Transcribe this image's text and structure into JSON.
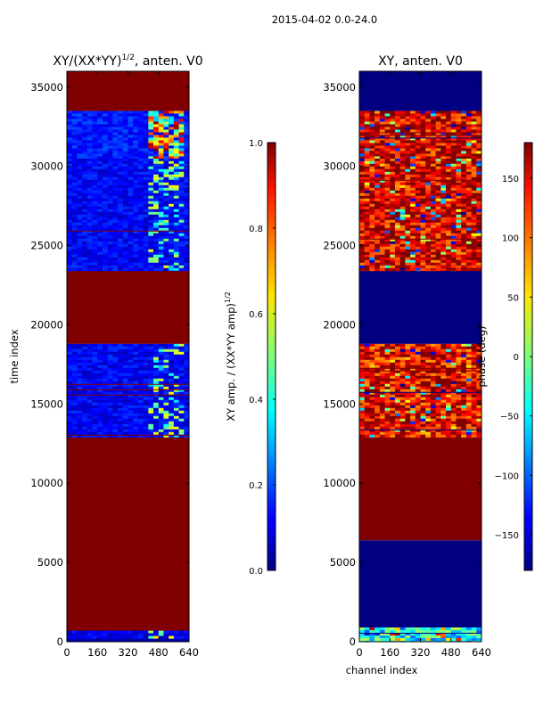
{
  "figure": {
    "suptitle": "2015-04-02 0.0-24.0"
  },
  "chart_data": [
    {
      "type": "heatmap",
      "title": "XY/(XX*YY)^1/2, anten. V0",
      "title_main": "XY/(XX*YY)",
      "title_sup": "1/2",
      "title_tail": ", anten. V0",
      "xlabel": "",
      "ylabel": "time index",
      "xlim": [
        0,
        640
      ],
      "ylim": [
        0,
        36000
      ],
      "xticks": [
        0,
        160,
        320,
        480,
        640
      ],
      "yticks": [
        0,
        5000,
        10000,
        15000,
        20000,
        25000,
        30000,
        35000
      ],
      "colorbar": {
        "label": "XY amp. / (XX*YY amp)^1/2",
        "label_main": "XY amp. / (XX*YY amp)",
        "label_sup": "1/2",
        "range": [
          0.0,
          1.0
        ],
        "ticks": [
          "0.0",
          "0.2",
          "0.4",
          "0.6",
          "0.8",
          "1.0"
        ],
        "tick_values": [
          0.0,
          0.2,
          0.4,
          0.6,
          0.8,
          1.0
        ]
      },
      "regions": [
        {
          "t0": 0,
          "t1": 200,
          "value": 0.05
        },
        {
          "t0": 200,
          "t1": 700,
          "value": 0.1,
          "pattern": "noisy"
        },
        {
          "t0": 700,
          "t1": 12900,
          "value": 1.0
        },
        {
          "t0": 12900,
          "t1": 18800,
          "value": 0.12,
          "pattern": "noisy"
        },
        {
          "t0": 18800,
          "t1": 23400,
          "value": 1.0
        },
        {
          "t0": 23400,
          "t1": 30500,
          "value": 0.12,
          "pattern": "noisy"
        },
        {
          "t0": 30500,
          "t1": 33500,
          "value": 0.15,
          "pattern": "hot"
        },
        {
          "t0": 33500,
          "t1": 36000,
          "value": 1.0
        }
      ]
    },
    {
      "type": "heatmap",
      "title": "XY, anten. V0",
      "xlabel": "channel index",
      "ylabel": "",
      "xlim": [
        0,
        640
      ],
      "ylim": [
        0,
        36000
      ],
      "xticks": [
        0,
        160,
        320,
        480,
        640
      ],
      "yticks": [
        0,
        5000,
        10000,
        15000,
        20000,
        25000,
        30000,
        35000
      ],
      "colorbar": {
        "label": "phase (deg)",
        "range": [
          -180,
          180
        ],
        "ticks": [
          "−150",
          "−100",
          "−50",
          "0",
          "50",
          "100",
          "150"
        ],
        "tick_values": [
          -150,
          -100,
          -50,
          0,
          50,
          100,
          150
        ]
      },
      "regions": [
        {
          "t0": 0,
          "t1": 900,
          "value": -40,
          "pattern": "noisy"
        },
        {
          "t0": 900,
          "t1": 6400,
          "value": -180
        },
        {
          "t0": 6400,
          "t1": 12900,
          "value": 180
        },
        {
          "t0": 12900,
          "t1": 18800,
          "value": 140,
          "pattern": "noisy"
        },
        {
          "t0": 18800,
          "t1": 23400,
          "value": -180
        },
        {
          "t0": 23400,
          "t1": 30500,
          "value": 150,
          "pattern": "noisy"
        },
        {
          "t0": 30500,
          "t1": 33500,
          "value": 150,
          "pattern": "noisy"
        },
        {
          "t0": 33500,
          "t1": 36000,
          "value": -180
        }
      ]
    }
  ]
}
